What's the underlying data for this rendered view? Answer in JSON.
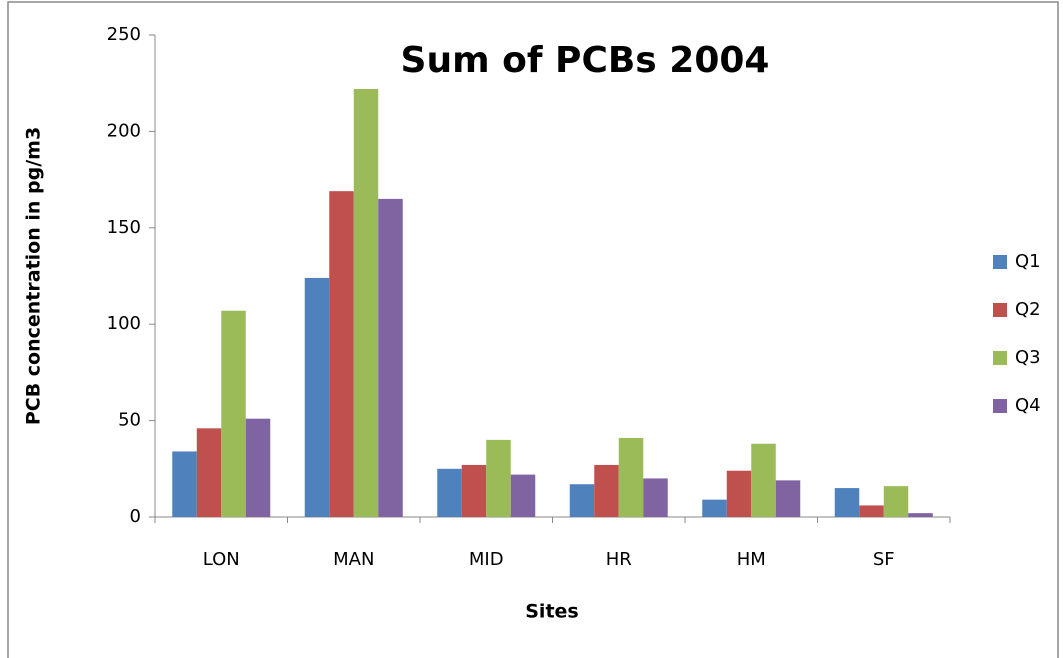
{
  "chart_data": {
    "type": "bar",
    "title": "Sum of PCBs 2004",
    "x_label": "Sites",
    "y_label": "PCB concentration in pg/m3",
    "categories": [
      "LON",
      "MAN",
      "MID",
      "HR",
      "HM",
      "SF"
    ],
    "series": [
      {
        "name": "Q1",
        "color": "#4f81bd",
        "values": [
          34,
          124,
          25,
          17,
          9,
          15
        ]
      },
      {
        "name": "Q2",
        "color": "#c0504d",
        "values": [
          46,
          169,
          27,
          27,
          24,
          6
        ]
      },
      {
        "name": "Q3",
        "color": "#9bbb59",
        "values": [
          107,
          222,
          40,
          41,
          38,
          16
        ]
      },
      {
        "name": "Q4",
        "color": "#8064a2",
        "values": [
          51,
          165,
          22,
          20,
          19,
          2
        ]
      }
    ],
    "ylim": [
      0,
      250
    ],
    "yticks": [
      0,
      50,
      100,
      150,
      200,
      250
    ],
    "legend": "right"
  }
}
